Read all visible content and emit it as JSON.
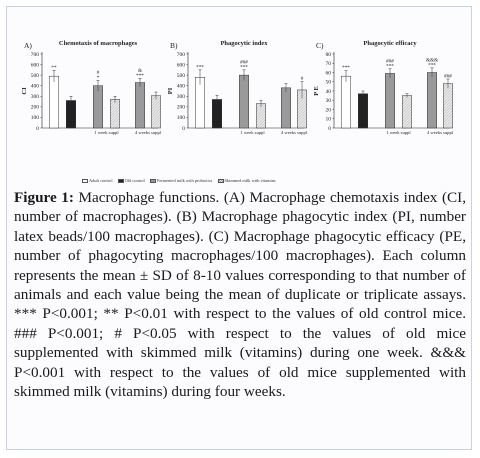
{
  "legend": {
    "items": [
      {
        "label": "Adult control",
        "fill": "#ffffff",
        "pattern": "none"
      },
      {
        "label": "Old control",
        "fill": "#222222",
        "pattern": "none"
      },
      {
        "label": "Fermented milk with probiotics",
        "fill": "#9a9a9a",
        "pattern": "none"
      },
      {
        "label": "Skimmed milk with vitamins",
        "fill": "#e6e6e6",
        "pattern": "hatch"
      }
    ]
  },
  "caption": {
    "label": "Figure 1:",
    "text": "Macrophage functions. (A) Macrophage chemotaxis index (CI, number of macrophages). (B) Macrophage phagocytic index (PI, number latex beads/100 macrophages). (C) Macrophage phagocytic efficacy (PE, number of phagocyting macrophages/100 macrophages). Each column represents the mean ± SD of 8-10 values corresponding to that number of animals and each value being the mean of duplicate or triplicate assays. *** P<0.001; ** P<0.01 with respect to the values of old control mice. ### P<0.001; # P<0.05 with respect to the values of old mice supplemented with skimmed milk (vitamins) during one week. &&& P<0.001 with respect to the values of old mice supplemented with skimmed milk (vitamins) during four weeks."
  },
  "chart_data": [
    {
      "type": "bar",
      "panel": "A)",
      "title": "Chemotaxis of macrophages",
      "ylabel": "CI",
      "ylim": [
        0,
        700
      ],
      "yticks": [
        0,
        100,
        200,
        300,
        400,
        500,
        600,
        700
      ],
      "groups": [
        "",
        "1 week suppl",
        "4 weeks suppl"
      ],
      "bars": [
        {
          "group": 0,
          "series": "Adult control",
          "value": 490,
          "err": 55,
          "sig": "**"
        },
        {
          "group": 0,
          "series": "Old control",
          "value": 260,
          "err": 40,
          "sig": ""
        },
        {
          "group": 1,
          "series": "Fermented milk with probiotics",
          "value": 400,
          "err": 50,
          "sig": "#\n*"
        },
        {
          "group": 1,
          "series": "Skimmed milk with vitamins",
          "value": 270,
          "err": 30,
          "sig": ""
        },
        {
          "group": 2,
          "series": "Fermented milk with probiotics",
          "value": 430,
          "err": 40,
          "sig": "&\n***"
        },
        {
          "group": 2,
          "series": "Skimmed milk with vitamins",
          "value": 305,
          "err": 35,
          "sig": ""
        }
      ]
    },
    {
      "type": "bar",
      "panel": "B)",
      "title": "Phagocytic index",
      "ylabel": "PI",
      "ylim": [
        0,
        700
      ],
      "yticks": [
        0,
        100,
        200,
        300,
        400,
        500,
        600,
        700
      ],
      "groups": [
        "",
        "1 week suppl",
        "4 weeks suppl"
      ],
      "bars": [
        {
          "group": 0,
          "series": "Adult control",
          "value": 480,
          "err": 70,
          "sig": "***"
        },
        {
          "group": 0,
          "series": "Old control",
          "value": 270,
          "err": 40,
          "sig": ""
        },
        {
          "group": 1,
          "series": "Fermented milk with probiotics",
          "value": 500,
          "err": 50,
          "sig": "###\n***"
        },
        {
          "group": 1,
          "series": "Skimmed milk with vitamins",
          "value": 230,
          "err": 30,
          "sig": ""
        },
        {
          "group": 2,
          "series": "Fermented milk with probiotics",
          "value": 380,
          "err": 40,
          "sig": ""
        },
        {
          "group": 2,
          "series": "Skimmed milk with vitamins",
          "value": 360,
          "err": 80,
          "sig": "#"
        }
      ]
    },
    {
      "type": "bar",
      "panel": "C)",
      "title": "Phagocytic efficacy",
      "ylabel": "P E",
      "ylim": [
        0,
        80
      ],
      "yticks": [
        0,
        10,
        20,
        30,
        40,
        50,
        60,
        70,
        80
      ],
      "groups": [
        "",
        "1 week suppl",
        "4 weeks suppl"
      ],
      "bars": [
        {
          "group": 0,
          "series": "Adult control",
          "value": 56,
          "err": 6,
          "sig": "***"
        },
        {
          "group": 0,
          "series": "Old control",
          "value": 37,
          "err": 3,
          "sig": ""
        },
        {
          "group": 1,
          "series": "Fermented milk with probiotics",
          "value": 59,
          "err": 5,
          "sig": "###\n***"
        },
        {
          "group": 1,
          "series": "Skimmed milk with vitamins",
          "value": 35,
          "err": 2,
          "sig": ""
        },
        {
          "group": 2,
          "series": "Fermented milk with probiotics",
          "value": 60,
          "err": 5,
          "sig": "&&&\n***"
        },
        {
          "group": 2,
          "series": "Skimmed milk with vitamins",
          "value": 48,
          "err": 5,
          "sig": "###"
        }
      ]
    }
  ]
}
